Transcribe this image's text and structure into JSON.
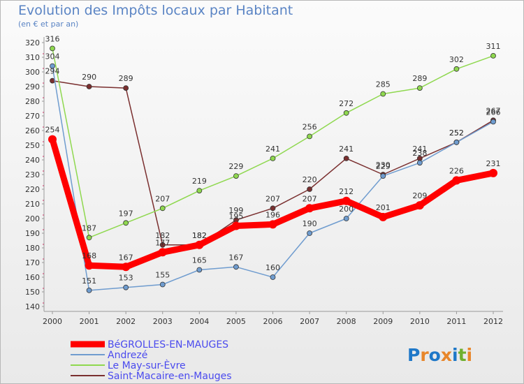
{
  "chart_data": {
    "type": "line",
    "title": "Evolution des Impôts locaux par Habitant",
    "subtitle": "(en € et par an)",
    "xlabel": "",
    "ylabel": "",
    "categories": [
      "2000",
      "2001",
      "2002",
      "2003",
      "2004",
      "2005",
      "2006",
      "2007",
      "2008",
      "2009",
      "2010",
      "2011",
      "2012"
    ],
    "ylim": [
      140,
      320
    ],
    "yticks": [
      140,
      150,
      160,
      170,
      180,
      190,
      200,
      210,
      220,
      230,
      240,
      250,
      260,
      270,
      280,
      290,
      300,
      310,
      320
    ],
    "grid": false,
    "legend_position": "bottom-left",
    "series": [
      {
        "name": "BéGROLLES-EN-MAUGES",
        "color": "#ff0000",
        "values": [
          254,
          168,
          167,
          177,
          182,
          195,
          196,
          207,
          212,
          201,
          209,
          226,
          231
        ]
      },
      {
        "name": "Andrezé",
        "color": "#6f9ccf",
        "values": [
          304,
          151,
          153,
          155,
          165,
          167,
          160,
          190,
          200,
          229,
          238,
          252,
          266
        ]
      },
      {
        "name": "Le May-sur-Èvre",
        "color": "#8fd84f",
        "values": [
          316,
          187,
          197,
          207,
          219,
          229,
          241,
          256,
          272,
          285,
          289,
          302,
          311
        ]
      },
      {
        "name": "Saint-Macaire-en-Mauges",
        "color": "#7a2f2f",
        "values": [
          294,
          290,
          289,
          182,
          182,
          199,
          207,
          220,
          241,
          230,
          241,
          252,
          267
        ]
      }
    ]
  },
  "logo": {
    "text": "Proxiti",
    "colors": [
      "#1f78c8",
      "#e8862a",
      "#1f78c8",
      "#e8862a",
      "#1f78c8",
      "#6fb02f",
      "#e8862a"
    ]
  }
}
